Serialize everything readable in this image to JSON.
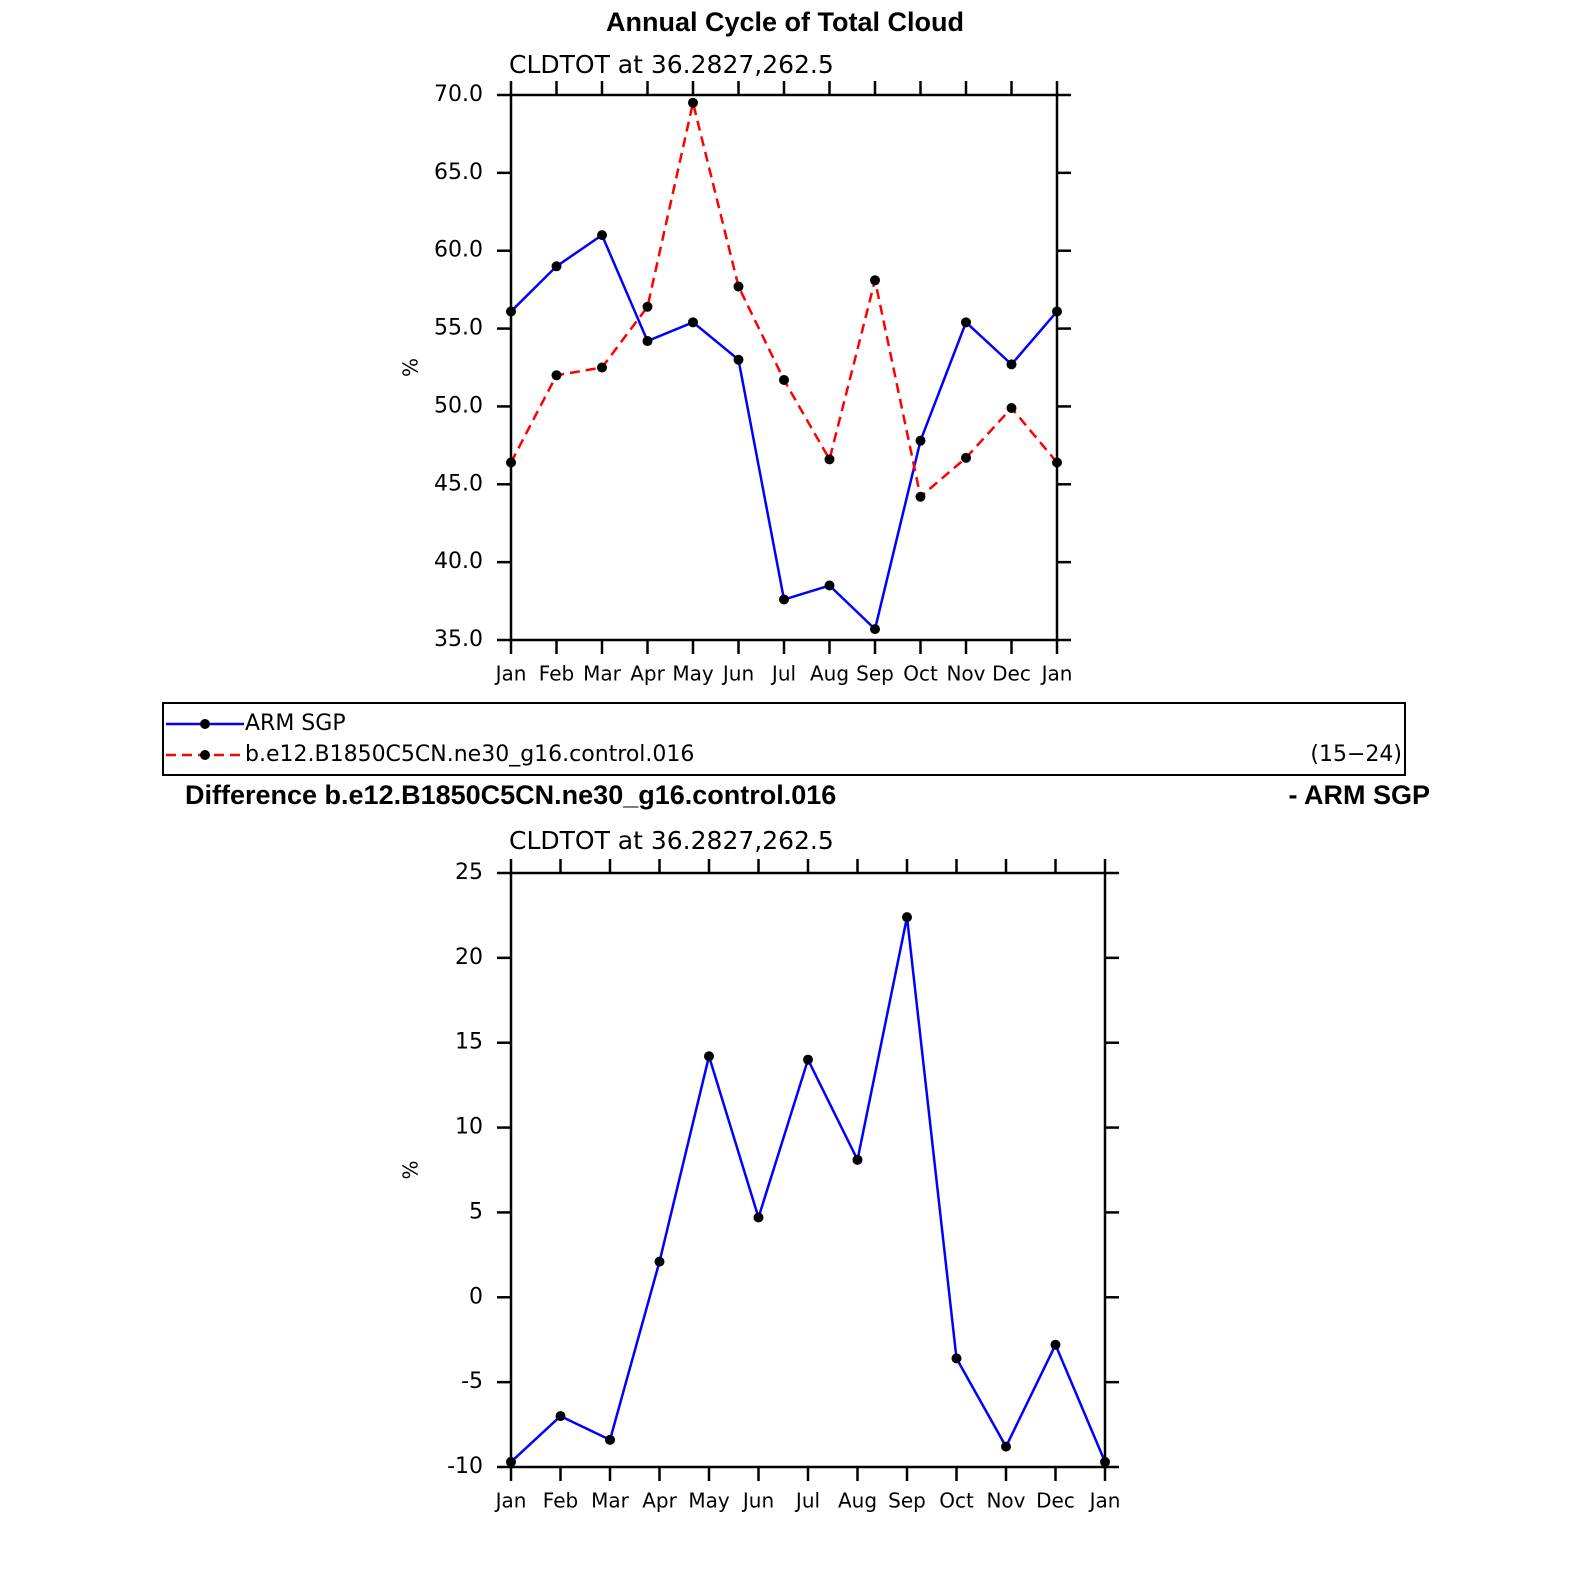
{
  "chart_data": [
    {
      "type": "line",
      "title": "Annual Cycle of Total Cloud",
      "subtitle": "CLDTOT at 36.2827,262.5",
      "ylabel": "%",
      "categories": [
        "Jan",
        "Feb",
        "Mar",
        "Apr",
        "May",
        "Jun",
        "Jul",
        "Aug",
        "Sep",
        "Oct",
        "Nov",
        "Dec",
        "Jan"
      ],
      "series": [
        {
          "name": "ARM SGP",
          "color": "#0000ff",
          "linestyle": "solid",
          "values": [
            56.1,
            59.0,
            61.0,
            54.2,
            55.4,
            53.0,
            37.6,
            38.5,
            35.7,
            47.8,
            55.4,
            52.7,
            56.1
          ]
        },
        {
          "name": "b.e12.B1850C5CN.ne30_g16.control.016",
          "color": "#ff0000",
          "linestyle": "dashed",
          "values": [
            46.4,
            52.0,
            52.5,
            56.4,
            69.5,
            57.7,
            51.7,
            46.6,
            58.1,
            44.2,
            46.7,
            49.9,
            46.4
          ]
        }
      ],
      "legend_note": "(15−24)",
      "ylim": [
        35,
        70
      ],
      "yticks": [
        {
          "value": 35,
          "label": "35.0"
        },
        {
          "value": 40,
          "label": "40.0"
        },
        {
          "value": 45,
          "label": "45.0"
        },
        {
          "value": 50,
          "label": "50.0"
        },
        {
          "value": 55,
          "label": "55.0"
        },
        {
          "value": 60,
          "label": "60.0"
        },
        {
          "value": 65,
          "label": "65.0"
        },
        {
          "value": 70,
          "label": "70.0"
        }
      ]
    },
    {
      "type": "line",
      "title": "Difference b.e12.B1850C5CN.ne30_g16.control.016",
      "title_right": "- ARM SGP",
      "subtitle": "CLDTOT at 36.2827,262.5",
      "ylabel": "%",
      "categories": [
        "Jan",
        "Feb",
        "Mar",
        "Apr",
        "May",
        "Jun",
        "Jul",
        "Aug",
        "Sep",
        "Oct",
        "Nov",
        "Dec",
        "Jan"
      ],
      "series": [
        {
          "color": "#0000ff",
          "linestyle": "solid",
          "values": [
            -9.7,
            -7.0,
            -8.4,
            2.1,
            14.2,
            4.7,
            14.0,
            8.1,
            22.4,
            -3.6,
            -8.8,
            -2.8,
            -9.7
          ]
        }
      ],
      "ylim": [
        -10,
        25
      ],
      "yticks": [
        -10,
        -5,
        0,
        5,
        10,
        15,
        20,
        25
      ]
    }
  ]
}
